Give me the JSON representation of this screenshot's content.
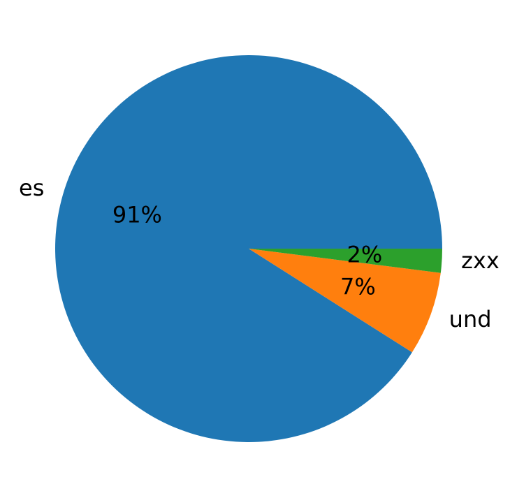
{
  "chart_data": {
    "type": "pie",
    "categories": [
      "es",
      "und",
      "zxx"
    ],
    "values": [
      91,
      7,
      2
    ],
    "value_labels": [
      "91%",
      "7%",
      "2%"
    ],
    "colors": [
      "#1f77b4",
      "#ff7f0e",
      "#2ca02c"
    ]
  }
}
